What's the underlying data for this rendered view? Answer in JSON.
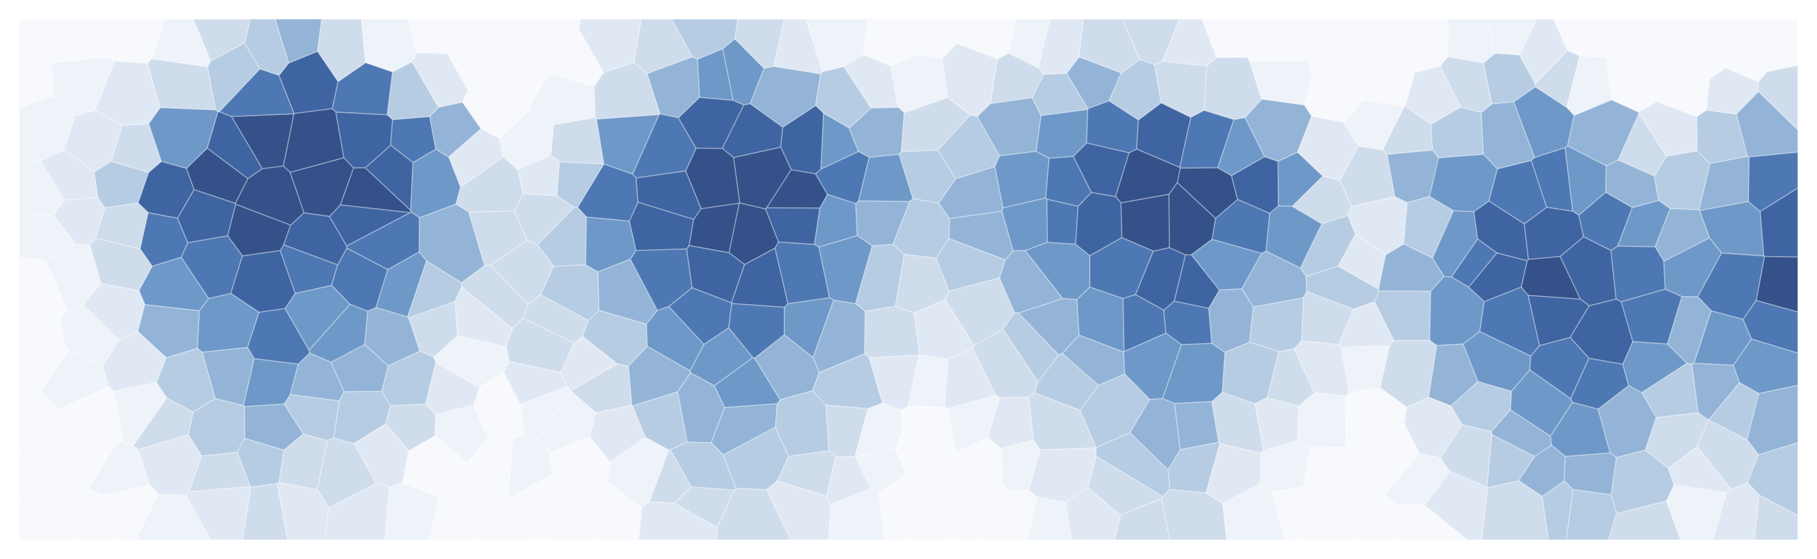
{
  "palette": [
    "#f7f9fd",
    "#eef3f9",
    "#e0e8f4",
    "#cfdcec",
    "#b5cce3",
    "#93b4d7",
    "#6e98c8",
    "#4e78b3",
    "#3f64a2",
    "#34518a"
  ],
  "background": "#ffffff",
  "mosaic": {
    "cols": 37,
    "rows": 11,
    "seed": 7,
    "levels": [
      "0001345310000234321000123320000011200000",
      "0123478742001356654212345433100234310023",
      "1236899875213678886534567876521345653245",
      "1248999986324789997645678998633567765457",
      "1237898875334689986545678997642468876568",
      "0136787764334578876434567886542578987679",
      "0125676653233467765323456775432467887567",
      "0124565542122356654212345664321356776456",
      "0013454431011245543101234553210245665345",
      "0012343320010134432100123442100134554234",
      "0001232210000023321000012331000023443123"
    ]
  }
}
